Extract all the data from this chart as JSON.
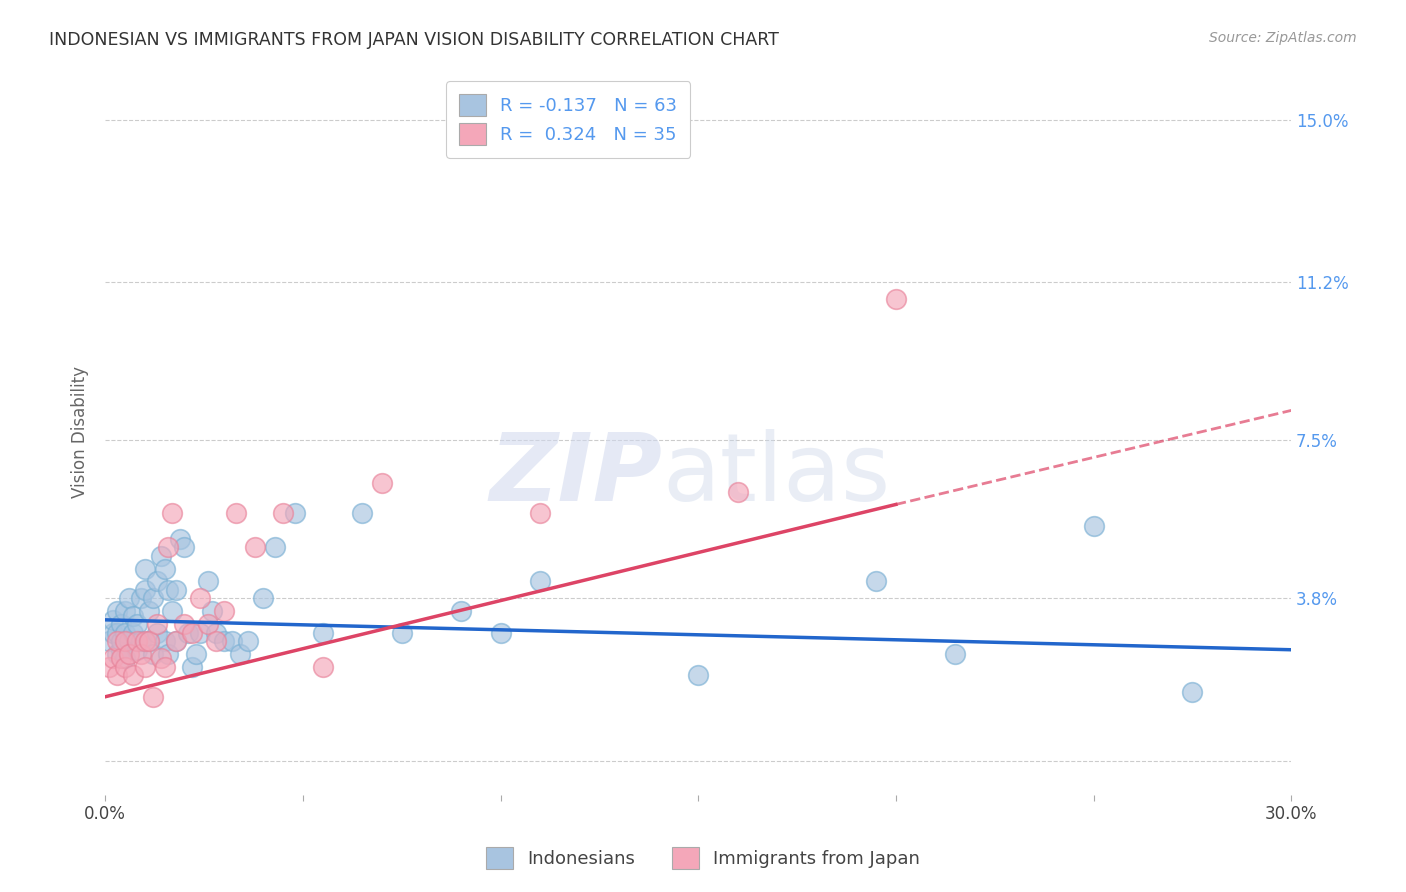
{
  "title": "INDONESIAN VS IMMIGRANTS FROM JAPAN VISION DISABILITY CORRELATION CHART",
  "source": "Source: ZipAtlas.com",
  "ylabel": "Vision Disability",
  "xlim": [
    0.0,
    0.3
  ],
  "ylim": [
    -0.008,
    0.162
  ],
  "yticks": [
    0.0,
    0.038,
    0.075,
    0.112,
    0.15
  ],
  "ytick_labels": [
    "",
    "3.8%",
    "7.5%",
    "11.2%",
    "15.0%"
  ],
  "xticks": [
    0.0,
    0.05,
    0.1,
    0.15,
    0.2,
    0.25,
    0.3
  ],
  "xtick_labels": [
    "0.0%",
    "",
    "",
    "",
    "",
    "",
    "30.0%"
  ],
  "indonesian_color": "#a8c4e0",
  "japan_color": "#f4a7b9",
  "indonesian_edge": "#7ab0d4",
  "japan_edge": "#e8839a",
  "indonesian_R": -0.137,
  "indonesian_N": 63,
  "japan_R": 0.324,
  "japan_N": 35,
  "indonesian_scatter_x": [
    0.001,
    0.002,
    0.002,
    0.003,
    0.003,
    0.003,
    0.004,
    0.004,
    0.004,
    0.005,
    0.005,
    0.005,
    0.006,
    0.006,
    0.007,
    0.007,
    0.008,
    0.008,
    0.009,
    0.009,
    0.01,
    0.01,
    0.011,
    0.011,
    0.012,
    0.012,
    0.013,
    0.013,
    0.014,
    0.015,
    0.015,
    0.016,
    0.016,
    0.017,
    0.018,
    0.018,
    0.019,
    0.02,
    0.021,
    0.022,
    0.023,
    0.024,
    0.026,
    0.027,
    0.028,
    0.03,
    0.032,
    0.034,
    0.036,
    0.04,
    0.043,
    0.048,
    0.055,
    0.065,
    0.075,
    0.09,
    0.1,
    0.11,
    0.15,
    0.195,
    0.215,
    0.25,
    0.275
  ],
  "indonesian_scatter_y": [
    0.028,
    0.03,
    0.033,
    0.025,
    0.03,
    0.035,
    0.026,
    0.032,
    0.028,
    0.024,
    0.03,
    0.035,
    0.028,
    0.038,
    0.03,
    0.034,
    0.026,
    0.032,
    0.028,
    0.038,
    0.04,
    0.045,
    0.028,
    0.035,
    0.025,
    0.038,
    0.03,
    0.042,
    0.048,
    0.028,
    0.045,
    0.025,
    0.04,
    0.035,
    0.028,
    0.04,
    0.052,
    0.05,
    0.03,
    0.022,
    0.025,
    0.03,
    0.042,
    0.035,
    0.03,
    0.028,
    0.028,
    0.025,
    0.028,
    0.038,
    0.05,
    0.058,
    0.03,
    0.058,
    0.03,
    0.035,
    0.03,
    0.042,
    0.02,
    0.042,
    0.025,
    0.055,
    0.016
  ],
  "japan_scatter_x": [
    0.001,
    0.002,
    0.003,
    0.003,
    0.004,
    0.005,
    0.005,
    0.006,
    0.007,
    0.008,
    0.009,
    0.01,
    0.01,
    0.011,
    0.012,
    0.013,
    0.014,
    0.015,
    0.016,
    0.017,
    0.018,
    0.02,
    0.022,
    0.024,
    0.026,
    0.028,
    0.03,
    0.033,
    0.038,
    0.045,
    0.055,
    0.07,
    0.11,
    0.16,
    0.2
  ],
  "japan_scatter_y": [
    0.022,
    0.024,
    0.02,
    0.028,
    0.024,
    0.022,
    0.028,
    0.025,
    0.02,
    0.028,
    0.025,
    0.022,
    0.028,
    0.028,
    0.015,
    0.032,
    0.024,
    0.022,
    0.05,
    0.058,
    0.028,
    0.032,
    0.03,
    0.038,
    0.032,
    0.028,
    0.035,
    0.058,
    0.05,
    0.058,
    0.022,
    0.065,
    0.058,
    0.063,
    0.108
  ],
  "trend_indo_x0": 0.0,
  "trend_indo_x1": 0.3,
  "trend_indo_y0": 0.033,
  "trend_indo_y1": 0.026,
  "trend_japan_solid_x0": 0.0,
  "trend_japan_solid_x1": 0.2,
  "trend_japan_solid_y0": 0.015,
  "trend_japan_solid_y1": 0.06,
  "trend_japan_dash_x0": 0.2,
  "trend_japan_dash_x1": 0.3,
  "trend_japan_dash_y0": 0.06,
  "trend_japan_dash_y1": 0.082,
  "watermark_zip": "ZIP",
  "watermark_atlas": "atlas",
  "background_color": "#ffffff",
  "grid_color": "#cccccc",
  "title_color": "#333333",
  "axis_label_color": "#666666",
  "ytick_color": "#5599ee",
  "source_color": "#999999",
  "trend_blue_color": "#2266cc",
  "trend_pink_color": "#dd4466"
}
